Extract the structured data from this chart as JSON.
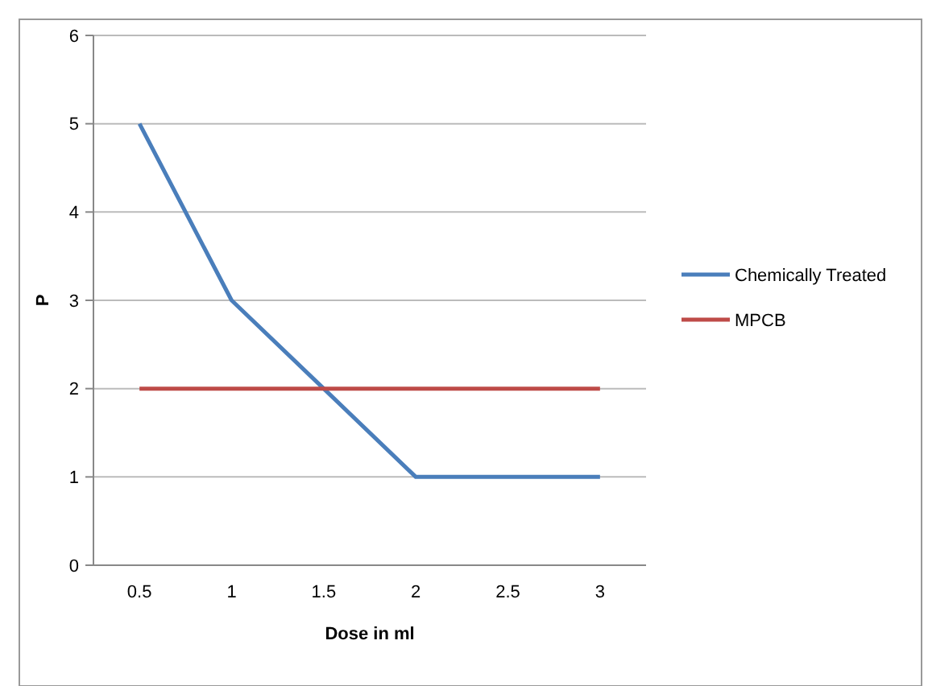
{
  "chart_data": {
    "type": "line",
    "xlabel": "Dose in ml",
    "ylabel": "P",
    "categories": [
      "0.5",
      "1",
      "1.5",
      "2",
      "2.5",
      "3"
    ],
    "series": [
      {
        "name": "Chemically Treated",
        "color": "#4a7ebb",
        "values": [
          5,
          3,
          2,
          1,
          1,
          1
        ]
      },
      {
        "name": "MPCB",
        "color": "#be4b48",
        "values": [
          2,
          2,
          2,
          2,
          2,
          2
        ]
      }
    ],
    "ylim": [
      0,
      6
    ],
    "yticks": [
      0,
      1,
      2,
      3,
      4,
      5,
      6
    ],
    "grid": "y",
    "legend": "right",
    "marker": "none",
    "line_style": "solid"
  }
}
